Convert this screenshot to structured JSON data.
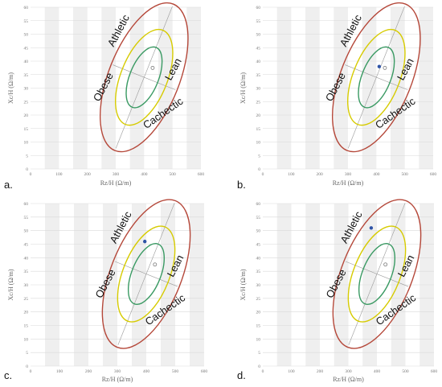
{
  "colors": {
    "band": "#efefef",
    "grid": "#d9d9d9",
    "outer_ellipse": "#b5483a",
    "middle_ellipse": "#d6cb00",
    "inner_ellipse": "#3a9a63",
    "axis_line": "#9a9a9a",
    "reference_point": "#777777",
    "patient_point": "#2f54a6"
  },
  "axes": {
    "xlabel": "Rz/H (Ω/m)",
    "ylabel": "Xc/H (Ω/m)",
    "x_ticks": [
      "0",
      "100",
      "200",
      "300",
      "400",
      "500",
      "600"
    ],
    "y_ticks": [
      "0",
      "5",
      "10",
      "15",
      "20",
      "25",
      "30",
      "35",
      "40",
      "45",
      "50",
      "55",
      "60"
    ]
  },
  "region_labels": {
    "top": "Athletic",
    "right": "Lean",
    "left": "Obese",
    "bottom": "Cachectic"
  },
  "chart_data": [
    {
      "panel": "a.",
      "type": "scatter",
      "xlabel": "Rz/H (Ω/m)",
      "ylabel": "Xc/H (Ω/m)",
      "xlim": [
        0,
        600
      ],
      "ylim": [
        0,
        60
      ],
      "ellipse_center": [
        400,
        34
      ],
      "reference_point": {
        "x": 430,
        "y": 37.5
      },
      "points": [
        {
          "x": 430,
          "y": 37.5
        }
      ]
    },
    {
      "panel": "b.",
      "type": "scatter",
      "xlabel": "Rz/H (Ω/m)",
      "ylabel": "Xc/H (Ω/m)",
      "xlim": [
        0,
        600
      ],
      "ylim": [
        0,
        60
      ],
      "ellipse_center": [
        400,
        34
      ],
      "reference_point": {
        "x": 430,
        "y": 37.5
      },
      "points": [
        {
          "x": 410,
          "y": 38
        }
      ]
    },
    {
      "panel": "c.",
      "type": "scatter",
      "xlabel": "Rz/H (Ω/m)",
      "ylabel": "Xc/H (Ω/m)",
      "xlim": [
        0,
        600
      ],
      "ylim": [
        0,
        60
      ],
      "ellipse_center": [
        400,
        34
      ],
      "reference_point": {
        "x": 430,
        "y": 37.5
      },
      "points": [
        {
          "x": 395,
          "y": 46
        }
      ]
    },
    {
      "panel": "d.",
      "type": "scatter",
      "xlabel": "Rz/H (Ω/m)",
      "ylabel": "Xc/H (Ω/m)",
      "xlim": [
        0,
        600
      ],
      "ylim": [
        0,
        60
      ],
      "ellipse_center": [
        400,
        34
      ],
      "reference_point": {
        "x": 430,
        "y": 37.5
      },
      "points": [
        {
          "x": 380,
          "y": 51
        }
      ]
    }
  ]
}
